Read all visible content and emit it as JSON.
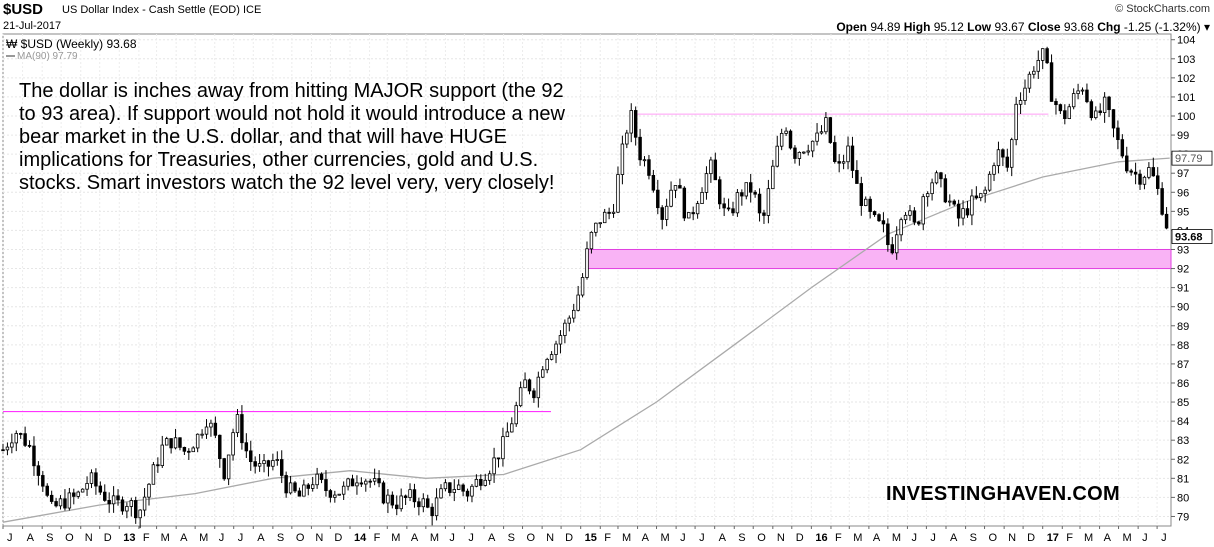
{
  "header": {
    "symbol": "$USD",
    "description": "US Dollar Index - Cash Settle (EOD)",
    "exchange": "ICE",
    "date": "21-Jul-2017",
    "logo": "© StockCharts.com",
    "quote": {
      "open_label": "Open",
      "open": "94.89",
      "high_label": "High",
      "high": "95.12",
      "low_label": "Low",
      "low": "93.67",
      "close_label": "Close",
      "close": "93.68",
      "chg_label": "Chg",
      "chg": "-1.25 (-1.32%)"
    }
  },
  "legend": {
    "main": "$USD (Weekly) 93.68",
    "ma": "MA(90) 97.79"
  },
  "annotation": "The dollar is inches away from hitting MAJOR support (the 92 to 93 area). If support would not hold it would introduce a new bear market in the U.S. dollar, and that will have HUGE implications for Treasuries, other currencies, gold and U.S. stocks. Smart investors watch the 92 level very, very closely!",
  "watermark": "INVESTINGHAVEN.COM",
  "colors": {
    "candle": "#000000",
    "ma": "#aaaaaa",
    "resistance": "#ff33ff",
    "support_zone": "#f9b3f5",
    "support_border": "#e040e0"
  },
  "chart_data": {
    "type": "line",
    "style": "weekly candlestick price with moving average",
    "ylim": [
      78.5,
      104.3
    ],
    "y_ticks": [
      79,
      80,
      81,
      82,
      83,
      84,
      85,
      86,
      87,
      88,
      89,
      90,
      91,
      92,
      93,
      94,
      95,
      96,
      97,
      98,
      99,
      100,
      101,
      102,
      103,
      104
    ],
    "x_range": [
      "2012-07-01",
      "2017-07-23"
    ],
    "x_ticks": [
      {
        "label": "J",
        "date": "2012-07-01"
      },
      {
        "label": "A",
        "date": "2012-08-01"
      },
      {
        "label": "S",
        "date": "2012-09-01"
      },
      {
        "label": "O",
        "date": "2012-10-01"
      },
      {
        "label": "N",
        "date": "2012-11-01"
      },
      {
        "label": "D",
        "date": "2012-12-01"
      },
      {
        "label": "13",
        "date": "2013-01-01",
        "bold": true
      },
      {
        "label": "F",
        "date": "2013-02-01"
      },
      {
        "label": "M",
        "date": "2013-03-01"
      },
      {
        "label": "A",
        "date": "2013-04-01"
      },
      {
        "label": "M",
        "date": "2013-05-01"
      },
      {
        "label": "J",
        "date": "2013-06-01"
      },
      {
        "label": "J",
        "date": "2013-07-01"
      },
      {
        "label": "A",
        "date": "2013-08-01"
      },
      {
        "label": "S",
        "date": "2013-09-01"
      },
      {
        "label": "O",
        "date": "2013-10-01"
      },
      {
        "label": "N",
        "date": "2013-11-01"
      },
      {
        "label": "D",
        "date": "2013-12-01"
      },
      {
        "label": "14",
        "date": "2014-01-01",
        "bold": true
      },
      {
        "label": "F",
        "date": "2014-02-01"
      },
      {
        "label": "M",
        "date": "2014-03-01"
      },
      {
        "label": "A",
        "date": "2014-04-01"
      },
      {
        "label": "M",
        "date": "2014-05-01"
      },
      {
        "label": "J",
        "date": "2014-06-01"
      },
      {
        "label": "J",
        "date": "2014-07-01"
      },
      {
        "label": "A",
        "date": "2014-08-01"
      },
      {
        "label": "S",
        "date": "2014-09-01"
      },
      {
        "label": "O",
        "date": "2014-10-01"
      },
      {
        "label": "N",
        "date": "2014-11-01"
      },
      {
        "label": "D",
        "date": "2014-12-01"
      },
      {
        "label": "15",
        "date": "2015-01-01",
        "bold": true
      },
      {
        "label": "F",
        "date": "2015-02-01"
      },
      {
        "label": "M",
        "date": "2015-03-01"
      },
      {
        "label": "A",
        "date": "2015-04-01"
      },
      {
        "label": "M",
        "date": "2015-05-01"
      },
      {
        "label": "J",
        "date": "2015-06-01"
      },
      {
        "label": "J",
        "date": "2015-07-01"
      },
      {
        "label": "A",
        "date": "2015-08-01"
      },
      {
        "label": "S",
        "date": "2015-09-01"
      },
      {
        "label": "O",
        "date": "2015-10-01"
      },
      {
        "label": "N",
        "date": "2015-11-01"
      },
      {
        "label": "D",
        "date": "2015-12-01"
      },
      {
        "label": "16",
        "date": "2016-01-01",
        "bold": true
      },
      {
        "label": "F",
        "date": "2016-02-01"
      },
      {
        "label": "M",
        "date": "2016-03-01"
      },
      {
        "label": "A",
        "date": "2016-04-01"
      },
      {
        "label": "M",
        "date": "2016-05-01"
      },
      {
        "label": "J",
        "date": "2016-06-01"
      },
      {
        "label": "J",
        "date": "2016-07-01"
      },
      {
        "label": "A",
        "date": "2016-08-01"
      },
      {
        "label": "S",
        "date": "2016-09-01"
      },
      {
        "label": "O",
        "date": "2016-10-01"
      },
      {
        "label": "N",
        "date": "2016-11-01"
      },
      {
        "label": "D",
        "date": "2016-12-01"
      },
      {
        "label": "17",
        "date": "2017-01-01",
        "bold": true
      },
      {
        "label": "F",
        "date": "2017-02-01"
      },
      {
        "label": "M",
        "date": "2017-03-01"
      },
      {
        "label": "A",
        "date": "2017-04-01"
      },
      {
        "label": "M",
        "date": "2017-05-01"
      },
      {
        "label": "J",
        "date": "2017-06-01"
      },
      {
        "label": "J",
        "date": "2017-07-01"
      }
    ],
    "price_series": {
      "name": "$USD (Weekly)",
      "points": [
        {
          "date": "2012-07-01",
          "close": 82.5
        },
        {
          "date": "2012-07-20",
          "close": 83.5
        },
        {
          "date": "2012-08-10",
          "close": 82.8
        },
        {
          "date": "2012-09-01",
          "close": 81.0
        },
        {
          "date": "2012-09-14",
          "close": 79.3
        },
        {
          "date": "2012-10-05",
          "close": 79.8
        },
        {
          "date": "2012-10-25",
          "close": 80.0
        },
        {
          "date": "2012-11-15",
          "close": 81.0
        },
        {
          "date": "2012-12-05",
          "close": 80.2
        },
        {
          "date": "2012-12-25",
          "close": 79.6
        },
        {
          "date": "2013-01-15",
          "close": 79.8
        },
        {
          "date": "2013-02-01",
          "close": 79.2
        },
        {
          "date": "2013-02-20",
          "close": 81.0
        },
        {
          "date": "2013-03-10",
          "close": 82.6
        },
        {
          "date": "2013-03-25",
          "close": 83.0
        },
        {
          "date": "2013-04-15",
          "close": 82.4
        },
        {
          "date": "2013-05-05",
          "close": 83.2
        },
        {
          "date": "2013-05-20",
          "close": 84.2
        },
        {
          "date": "2013-06-05",
          "close": 82.8
        },
        {
          "date": "2013-06-15",
          "close": 81.2
        },
        {
          "date": "2013-07-05",
          "close": 84.2
        },
        {
          "date": "2013-07-25",
          "close": 82.0
        },
        {
          "date": "2013-08-15",
          "close": 81.4
        },
        {
          "date": "2013-09-05",
          "close": 82.0
        },
        {
          "date": "2013-09-25",
          "close": 80.4
        },
        {
          "date": "2013-10-15",
          "close": 80.0
        },
        {
          "date": "2013-11-05",
          "close": 81.0
        },
        {
          "date": "2013-11-25",
          "close": 80.4
        },
        {
          "date": "2013-12-20",
          "close": 80.3
        },
        {
          "date": "2014-01-15",
          "close": 81.2
        },
        {
          "date": "2014-02-05",
          "close": 80.8
        },
        {
          "date": "2014-02-25",
          "close": 80.0
        },
        {
          "date": "2014-03-15",
          "close": 79.7
        },
        {
          "date": "2014-04-05",
          "close": 80.0
        },
        {
          "date": "2014-04-25",
          "close": 79.8
        },
        {
          "date": "2014-05-08",
          "close": 79.2
        },
        {
          "date": "2014-05-30",
          "close": 80.4
        },
        {
          "date": "2014-06-20",
          "close": 80.6
        },
        {
          "date": "2014-07-05",
          "close": 80.2
        },
        {
          "date": "2014-07-25",
          "close": 81.0
        },
        {
          "date": "2014-08-15",
          "close": 81.8
        },
        {
          "date": "2014-09-01",
          "close": 82.8
        },
        {
          "date": "2014-09-20",
          "close": 84.6
        },
        {
          "date": "2014-10-05",
          "close": 86.0
        },
        {
          "date": "2014-10-20",
          "close": 85.6
        },
        {
          "date": "2014-11-05",
          "close": 87.4
        },
        {
          "date": "2014-11-25",
          "close": 88.2
        },
        {
          "date": "2014-12-15",
          "close": 89.5
        },
        {
          "date": "2015-01-01",
          "close": 91.0
        },
        {
          "date": "2015-01-15",
          "close": 93.5
        },
        {
          "date": "2015-02-01",
          "close": 94.6
        },
        {
          "date": "2015-02-20",
          "close": 95.0
        },
        {
          "date": "2015-03-10",
          "close": 98.5
        },
        {
          "date": "2015-03-20",
          "close": 100.2
        },
        {
          "date": "2015-04-05",
          "close": 98.0
        },
        {
          "date": "2015-04-20",
          "close": 97.2
        },
        {
          "date": "2015-05-10",
          "close": 94.8
        },
        {
          "date": "2015-05-30",
          "close": 96.8
        },
        {
          "date": "2015-06-20",
          "close": 94.4
        },
        {
          "date": "2015-07-10",
          "close": 96.2
        },
        {
          "date": "2015-07-25",
          "close": 97.4
        },
        {
          "date": "2015-08-20",
          "close": 94.5
        },
        {
          "date": "2015-09-10",
          "close": 96.0
        },
        {
          "date": "2015-09-30",
          "close": 96.2
        },
        {
          "date": "2015-10-15",
          "close": 94.2
        },
        {
          "date": "2015-11-01",
          "close": 97.2
        },
        {
          "date": "2015-11-20",
          "close": 99.8
        },
        {
          "date": "2015-12-03",
          "close": 98.0
        },
        {
          "date": "2015-12-20",
          "close": 98.4
        },
        {
          "date": "2016-01-10",
          "close": 98.8
        },
        {
          "date": "2016-01-25",
          "close": 99.6
        },
        {
          "date": "2016-02-10",
          "close": 97.0
        },
        {
          "date": "2016-02-28",
          "close": 98.2
        },
        {
          "date": "2016-03-15",
          "close": 96.0
        },
        {
          "date": "2016-04-05",
          "close": 94.6
        },
        {
          "date": "2016-04-25",
          "close": 94.0
        },
        {
          "date": "2016-05-05",
          "close": 92.8
        },
        {
          "date": "2016-05-25",
          "close": 95.4
        },
        {
          "date": "2016-06-15",
          "close": 94.0
        },
        {
          "date": "2016-06-28",
          "close": 96.2
        },
        {
          "date": "2016-07-15",
          "close": 96.8
        },
        {
          "date": "2016-08-05",
          "close": 95.6
        },
        {
          "date": "2016-08-20",
          "close": 94.6
        },
        {
          "date": "2016-09-10",
          "close": 95.4
        },
        {
          "date": "2016-09-30",
          "close": 95.8
        },
        {
          "date": "2016-10-20",
          "close": 98.2
        },
        {
          "date": "2016-11-08",
          "close": 97.2
        },
        {
          "date": "2016-11-20",
          "close": 100.8
        },
        {
          "date": "2016-12-05",
          "close": 101.6
        },
        {
          "date": "2016-12-20",
          "close": 102.8
        },
        {
          "date": "2017-01-03",
          "close": 103.2
        },
        {
          "date": "2017-01-15",
          "close": 101.2
        },
        {
          "date": "2017-02-01",
          "close": 99.8
        },
        {
          "date": "2017-02-20",
          "close": 101.0
        },
        {
          "date": "2017-03-05",
          "close": 101.6
        },
        {
          "date": "2017-03-25",
          "close": 99.8
        },
        {
          "date": "2017-04-10",
          "close": 100.6
        },
        {
          "date": "2017-04-25",
          "close": 99.0
        },
        {
          "date": "2017-05-15",
          "close": 97.4
        },
        {
          "date": "2017-06-01",
          "close": 96.8
        },
        {
          "date": "2017-06-20",
          "close": 97.2
        },
        {
          "date": "2017-07-05",
          "close": 95.8
        },
        {
          "date": "2017-07-21",
          "close": 93.68
        }
      ]
    },
    "ma_series": {
      "name": "MA(90)",
      "points": [
        {
          "date": "2012-07-01",
          "value": 78.7
        },
        {
          "date": "2012-12-01",
          "value": 79.6
        },
        {
          "date": "2013-05-01",
          "value": 80.2
        },
        {
          "date": "2013-09-01",
          "value": 81.0
        },
        {
          "date": "2014-01-01",
          "value": 81.4
        },
        {
          "date": "2014-05-01",
          "value": 81.0
        },
        {
          "date": "2014-09-01",
          "value": 81.2
        },
        {
          "date": "2015-01-01",
          "value": 82.5
        },
        {
          "date": "2015-05-01",
          "value": 85.0
        },
        {
          "date": "2015-09-01",
          "value": 88.0
        },
        {
          "date": "2016-01-01",
          "value": 91.0
        },
        {
          "date": "2016-05-01",
          "value": 93.8
        },
        {
          "date": "2016-09-01",
          "value": 95.5
        },
        {
          "date": "2017-01-01",
          "value": 96.8
        },
        {
          "date": "2017-05-01",
          "value": 97.6
        },
        {
          "date": "2017-07-21",
          "value": 97.79
        }
      ]
    },
    "resistance_2013": {
      "value": 84.5,
      "from": "2012-07-01",
      "to": "2014-11-15"
    },
    "resistance_2015": {
      "value": 100.1,
      "from": "2015-04-01",
      "to": "2017-01-10"
    },
    "support_zone": {
      "low": 92,
      "high": 93,
      "from": "2015-01-10",
      "to": "2017-07-23"
    },
    "last_price_label": "93.68",
    "ma_label": "97.79"
  }
}
